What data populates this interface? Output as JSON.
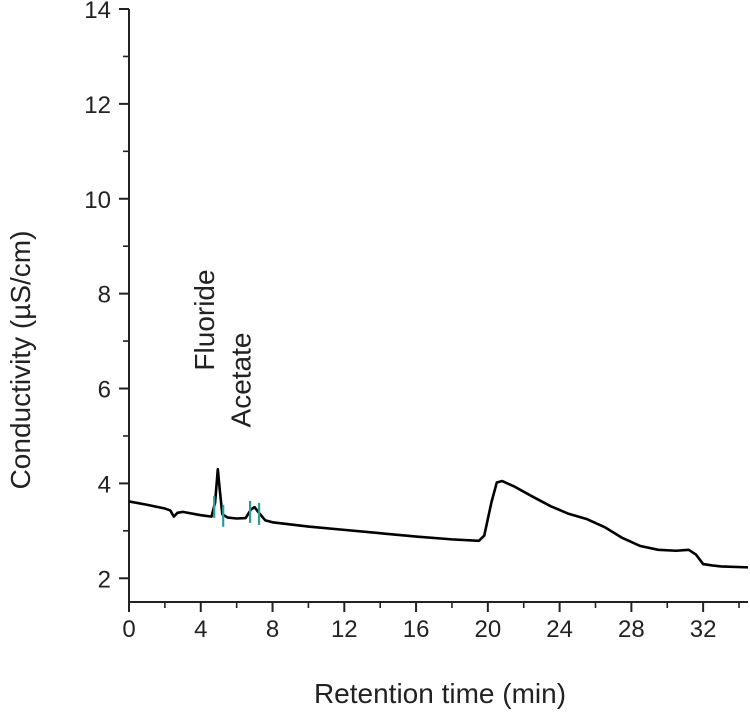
{
  "chart_data": {
    "type": "line",
    "title": "",
    "xlabel": "Retention time (min)",
    "ylabel": "Conductivity (µS/cm)",
    "xlim": [
      0,
      34.5
    ],
    "ylim": [
      1.5,
      14
    ],
    "x_ticks": [
      0,
      4,
      8,
      12,
      16,
      20,
      24,
      28,
      32
    ],
    "x_minor_ticks": [
      2,
      6,
      10,
      14,
      18,
      22,
      26,
      30,
      34
    ],
    "y_ticks": [
      2,
      4,
      6,
      8,
      10,
      12,
      14
    ],
    "y_minor_ticks": [
      3,
      5,
      7,
      9,
      11,
      13
    ],
    "grid": false,
    "line_color": "#000000",
    "marker_color": "#2a9d9a",
    "series": [
      {
        "values": [
          [
            0,
            3.62
          ],
          [
            1,
            3.55
          ],
          [
            2,
            3.47
          ],
          [
            2.3,
            3.43
          ],
          [
            2.5,
            3.3
          ],
          [
            2.7,
            3.38
          ],
          [
            3,
            3.4
          ],
          [
            4,
            3.33
          ],
          [
            4.6,
            3.3
          ],
          [
            4.8,
            3.6
          ],
          [
            4.95,
            4.3
          ],
          [
            5.05,
            3.9
          ],
          [
            5.2,
            3.35
          ],
          [
            5.5,
            3.28
          ],
          [
            6,
            3.26
          ],
          [
            6.5,
            3.27
          ],
          [
            6.8,
            3.45
          ],
          [
            7,
            3.5
          ],
          [
            7.2,
            3.4
          ],
          [
            7.6,
            3.22
          ],
          [
            8,
            3.18
          ],
          [
            10,
            3.09
          ],
          [
            12,
            3.02
          ],
          [
            14,
            2.95
          ],
          [
            16,
            2.88
          ],
          [
            18,
            2.82
          ],
          [
            19.5,
            2.79
          ],
          [
            19.8,
            2.9
          ],
          [
            20.2,
            3.6
          ],
          [
            20.5,
            4.02
          ],
          [
            20.8,
            4.05
          ],
          [
            21.5,
            3.93
          ],
          [
            22.5,
            3.72
          ],
          [
            23.5,
            3.52
          ],
          [
            24.5,
            3.36
          ],
          [
            25.5,
            3.25
          ],
          [
            26.5,
            3.08
          ],
          [
            27.5,
            2.85
          ],
          [
            28.5,
            2.68
          ],
          [
            29.5,
            2.6
          ],
          [
            30.5,
            2.58
          ],
          [
            31.2,
            2.6
          ],
          [
            31.6,
            2.5
          ],
          [
            32,
            2.3
          ],
          [
            32.5,
            2.27
          ],
          [
            33,
            2.25
          ],
          [
            34.5,
            2.23
          ]
        ]
      }
    ],
    "peaks": [
      {
        "label": "Fluoride",
        "x": 4.95,
        "markers": [
          4.75,
          5.25
        ]
      },
      {
        "label": "Acetate",
        "x": 7.0,
        "markers": [
          6.75,
          7.25
        ]
      }
    ]
  }
}
